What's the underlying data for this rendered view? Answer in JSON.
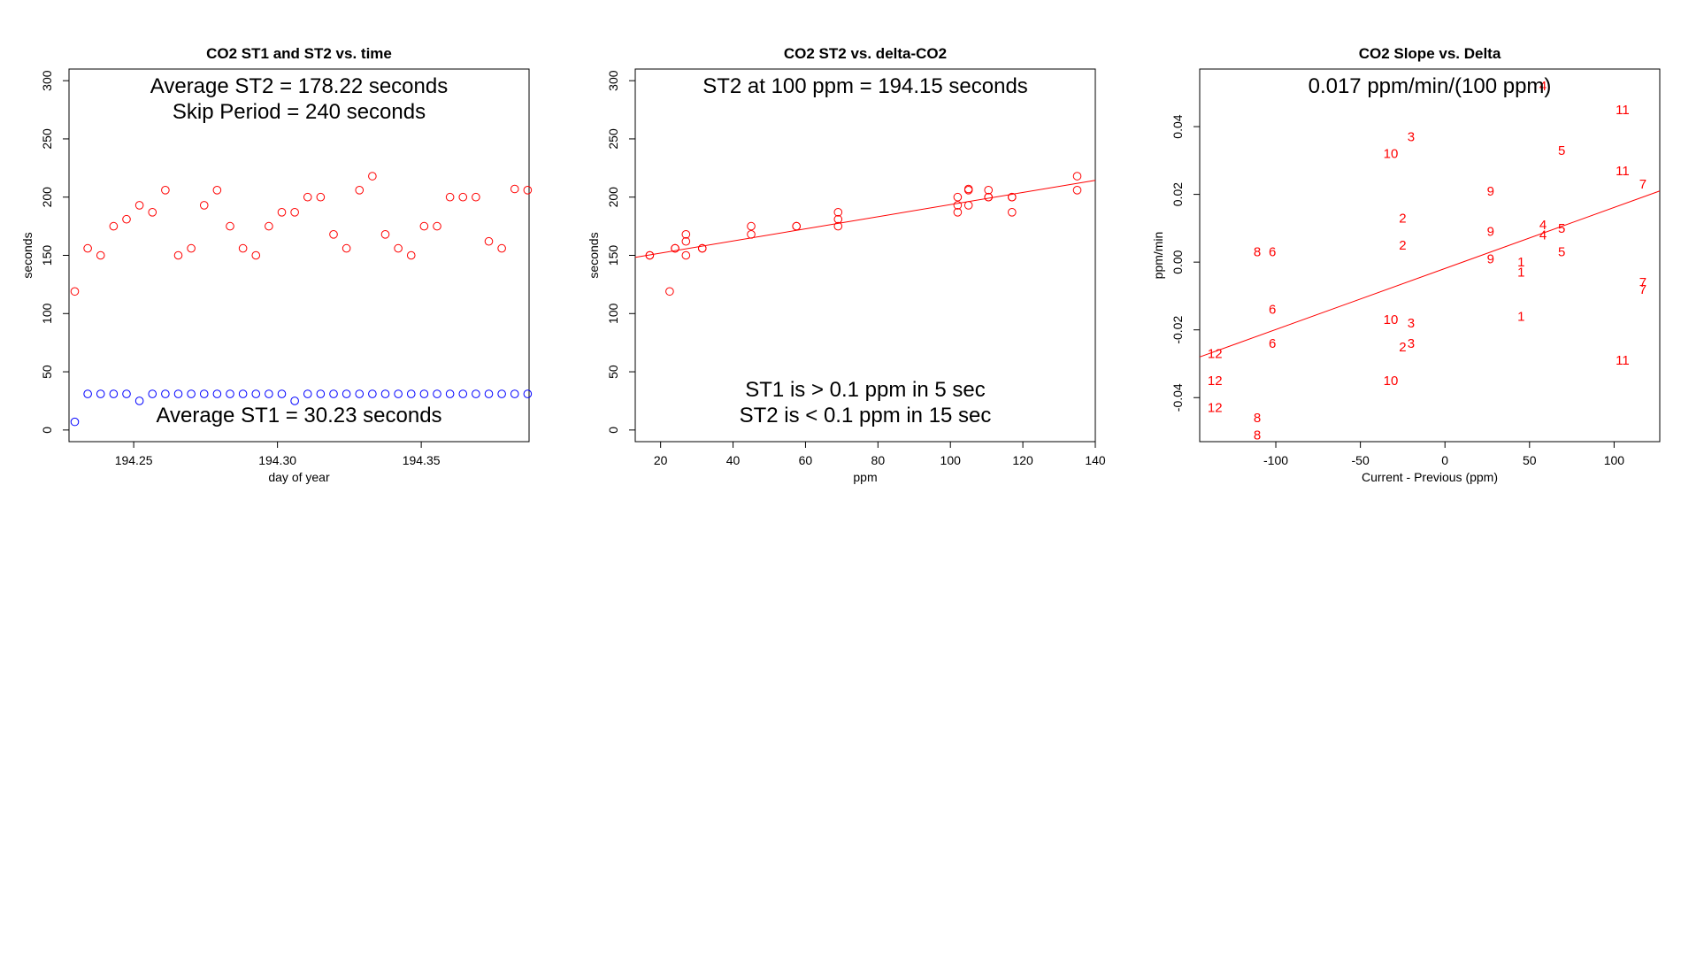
{
  "colors": {
    "st2": "#ff0000",
    "st1": "#0000ff",
    "axis": "#000000",
    "fit": "#ff0000"
  },
  "chart_data": [
    {
      "id": "p1",
      "type": "scatter",
      "title": "CO2 ST1 and ST2 vs. time",
      "xlabel": "day of year",
      "ylabel": "seconds",
      "xlim": [
        194.2275,
        194.3875
      ],
      "ylim": [
        -10,
        310
      ],
      "xticks": [
        194.25,
        194.3,
        194.35
      ],
      "xtick_labels": [
        "194.25",
        "194.30",
        "194.35"
      ],
      "yticks": [
        0,
        50,
        100,
        150,
        200,
        250,
        300
      ],
      "ytick_labels": [
        "0",
        "50",
        "100",
        "150",
        "200",
        "250",
        "300"
      ],
      "series": [
        {
          "name": "ST2",
          "color": "#ff0000",
          "marker": "circle",
          "x": [
            194.2295,
            194.234,
            194.2385,
            194.243,
            194.2475,
            194.252,
            194.2565,
            194.261,
            194.2655,
            194.27,
            194.2745,
            194.279,
            194.2835,
            194.288,
            194.2925,
            194.297,
            194.3015,
            194.306,
            194.3105,
            194.315,
            194.3195,
            194.324,
            194.3285,
            194.333,
            194.3375,
            194.342,
            194.3465,
            194.351,
            194.3555,
            194.36,
            194.3645,
            194.369,
            194.3735,
            194.378,
            194.3825,
            194.387
          ],
          "y": [
            119,
            156,
            150,
            175,
            181,
            193,
            187,
            206,
            150,
            156,
            193,
            206,
            175,
            156,
            150,
            175,
            187,
            187,
            200,
            200,
            168,
            156,
            206,
            218,
            168,
            156,
            150,
            175,
            175,
            200,
            200,
            200,
            162,
            156,
            207,
            206
          ]
        },
        {
          "name": "ST1",
          "color": "#0000ff",
          "marker": "circle",
          "x": [
            194.2295,
            194.234,
            194.2385,
            194.243,
            194.2475,
            194.252,
            194.2565,
            194.261,
            194.2655,
            194.27,
            194.2745,
            194.279,
            194.2835,
            194.288,
            194.2925,
            194.297,
            194.3015,
            194.306,
            194.3105,
            194.315,
            194.3195,
            194.324,
            194.3285,
            194.333,
            194.3375,
            194.342,
            194.3465,
            194.351,
            194.3555,
            194.36,
            194.3645,
            194.369,
            194.3735,
            194.378,
            194.3825,
            194.387
          ],
          "y": [
            7,
            31,
            31,
            31,
            31,
            25,
            31,
            31,
            31,
            31,
            31,
            31,
            31,
            31,
            31,
            31,
            31,
            25,
            31,
            31,
            31,
            31,
            31,
            31,
            31,
            31,
            31,
            31,
            31,
            31,
            31,
            31,
            31,
            31,
            31,
            31
          ]
        }
      ],
      "annotations": [
        {
          "lines": [
            "Average ST2 =  178.22  seconds",
            "Skip Period =  240  seconds"
          ],
          "anchor": "top"
        },
        {
          "lines": [
            "Average ST1 =  30.23  seconds"
          ],
          "anchor": "bottom"
        }
      ]
    },
    {
      "id": "p2",
      "type": "scatter",
      "title": "CO2 ST2 vs. delta-CO2",
      "xlabel": "ppm",
      "ylabel": "seconds",
      "xlim": [
        13,
        140
      ],
      "ylim": [
        -10,
        310
      ],
      "xticks": [
        20,
        40,
        60,
        80,
        100,
        120,
        140
      ],
      "xtick_labels": [
        "20",
        "40",
        "60",
        "80",
        "100",
        "120",
        "140"
      ],
      "yticks": [
        0,
        50,
        100,
        150,
        200,
        250,
        300
      ],
      "ytick_labels": [
        "0",
        "50",
        "100",
        "150",
        "200",
        "250",
        "300"
      ],
      "series": [
        {
          "name": "ST2",
          "color": "#ff0000",
          "marker": "circle",
          "x": [
            17,
            17,
            22.5,
            24,
            24,
            27,
            27,
            27,
            31.5,
            31.5,
            45,
            45,
            57.5,
            57.5,
            69,
            69,
            69,
            102,
            102,
            102,
            105,
            105,
            105,
            110.5,
            110.5,
            110.5,
            117,
            117,
            117,
            135,
            135
          ],
          "y": [
            150,
            150,
            119,
            156,
            156,
            150,
            162,
            168,
            156,
            156,
            168,
            175,
            175,
            175,
            175,
            181,
            187,
            187,
            193,
            200,
            193,
            206,
            207,
            200,
            200,
            206,
            187,
            200,
            200,
            206,
            218
          ]
        }
      ],
      "fit": {
        "x": [
          13,
          140
        ],
        "y": [
          148.3,
          214.4
        ],
        "color": "#ff0000"
      },
      "annotations": [
        {
          "lines": [
            "ST2 at 100 ppm =  194.15  seconds"
          ],
          "anchor": "top"
        },
        {
          "lines": [
            "ST1 is > 0.1 ppm in 5 sec",
            "ST2 is < 0.1 ppm in 15 sec"
          ],
          "anchor": "bottom"
        }
      ]
    },
    {
      "id": "p3",
      "type": "scatter",
      "title": "CO2 Slope vs. Delta",
      "xlabel": "Current - Previous (ppm)",
      "ylabel": "ppm/min",
      "xlim": [
        -145,
        127
      ],
      "ylim": [
        -0.053,
        0.057
      ],
      "xticks": [
        -100,
        -50,
        0,
        50,
        100
      ],
      "xtick_labels": [
        "-100",
        "-50",
        "0",
        "50",
        "100"
      ],
      "yticks": [
        -0.04,
        -0.02,
        0.0,
        0.02,
        0.04
      ],
      "ytick_labels": [
        "-0.04",
        "-0.02",
        "0.00",
        "0.02",
        "0.04"
      ],
      "series": [
        {
          "name": "points",
          "color": "#ff0000",
          "marker": "label",
          "points": [
            {
              "x": 58,
              "y": 0.052,
              "label": "4"
            },
            {
              "x": 105,
              "y": 0.045,
              "label": "11"
            },
            {
              "x": -20,
              "y": 0.037,
              "label": "3"
            },
            {
              "x": 69,
              "y": 0.033,
              "label": "5"
            },
            {
              "x": -32,
              "y": 0.032,
              "label": "10"
            },
            {
              "x": 105,
              "y": 0.027,
              "label": "11"
            },
            {
              "x": 117,
              "y": 0.023,
              "label": "7"
            },
            {
              "x": 27,
              "y": 0.021,
              "label": "9"
            },
            {
              "x": -25,
              "y": 0.013,
              "label": "2"
            },
            {
              "x": 58,
              "y": 0.011,
              "label": "4"
            },
            {
              "x": 69,
              "y": 0.01,
              "label": "5"
            },
            {
              "x": 58,
              "y": 0.008,
              "label": "4"
            },
            {
              "x": 27,
              "y": 0.009,
              "label": "9"
            },
            {
              "x": -25,
              "y": 0.005,
              "label": "2"
            },
            {
              "x": -111,
              "y": 0.003,
              "label": "8"
            },
            {
              "x": -102,
              "y": 0.003,
              "label": "6"
            },
            {
              "x": 69,
              "y": 0.003,
              "label": "5"
            },
            {
              "x": 27,
              "y": 0.001,
              "label": "9"
            },
            {
              "x": 45,
              "y": 0.0,
              "label": "1"
            },
            {
              "x": 45,
              "y": -0.003,
              "label": "1"
            },
            {
              "x": 117,
              "y": -0.006,
              "label": "7"
            },
            {
              "x": 117,
              "y": -0.008,
              "label": "7"
            },
            {
              "x": -102,
              "y": -0.014,
              "label": "6"
            },
            {
              "x": 45,
              "y": -0.016,
              "label": "1"
            },
            {
              "x": -32,
              "y": -0.017,
              "label": "10"
            },
            {
              "x": -20,
              "y": -0.018,
              "label": "3"
            },
            {
              "x": -102,
              "y": -0.024,
              "label": "6"
            },
            {
              "x": -20,
              "y": -0.024,
              "label": "3"
            },
            {
              "x": -25,
              "y": -0.025,
              "label": "2"
            },
            {
              "x": -136,
              "y": -0.027,
              "label": "12"
            },
            {
              "x": 105,
              "y": -0.029,
              "label": "11"
            },
            {
              "x": -136,
              "y": -0.035,
              "label": "12"
            },
            {
              "x": -32,
              "y": -0.035,
              "label": "10"
            },
            {
              "x": -136,
              "y": -0.043,
              "label": "12"
            },
            {
              "x": -111,
              "y": -0.046,
              "label": "8"
            },
            {
              "x": -111,
              "y": -0.051,
              "label": "8"
            }
          ]
        }
      ],
      "fit": {
        "x": [
          -145,
          127
        ],
        "y": [
          -0.028,
          0.021
        ],
        "color": "#ff0000"
      },
      "annotations": [
        {
          "lines": [
            "0.017  ppm/min/(100 ppm)"
          ],
          "anchor": "top"
        }
      ]
    }
  ]
}
